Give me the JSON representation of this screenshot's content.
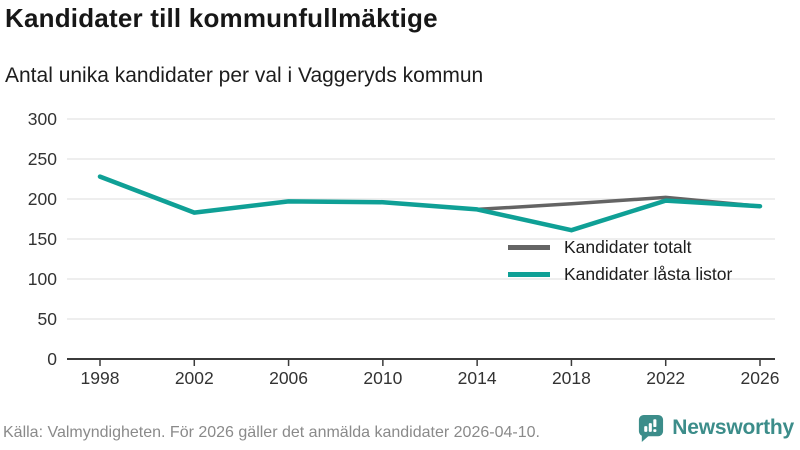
{
  "header": {
    "title": "Kandidater till kommunfullmäktige",
    "subtitle": "Antal unika kandidater per val i Vaggeryds kommun"
  },
  "chart_data": {
    "type": "line",
    "x": [
      1998,
      2002,
      2006,
      2010,
      2014,
      2018,
      2022,
      2026
    ],
    "series": [
      {
        "name": "Kandidater totalt",
        "color": "#646464",
        "values": [
          228,
          183,
          197,
          196,
          187,
          194,
          202,
          191
        ]
      },
      {
        "name": "Kandidater låsta listor",
        "color": "#0FA096",
        "values": [
          228,
          183,
          197,
          196,
          187,
          161,
          198,
          191
        ]
      }
    ],
    "ylim": [
      0,
      300
    ],
    "yticks": [
      0,
      50,
      100,
      150,
      200,
      250,
      300
    ],
    "grid": true,
    "legend_position": "top-right",
    "xlabel": "",
    "ylabel": ""
  },
  "colors": {
    "grid": "#e4e4e4",
    "axis": "#3b3b3b",
    "brand_teal": "#3C8D8A"
  },
  "footer": {
    "source": "Källa: Valmyndigheten. För 2026 gäller det anmälda kandidater 2026-04-10.",
    "brand": "Newsworthy"
  }
}
